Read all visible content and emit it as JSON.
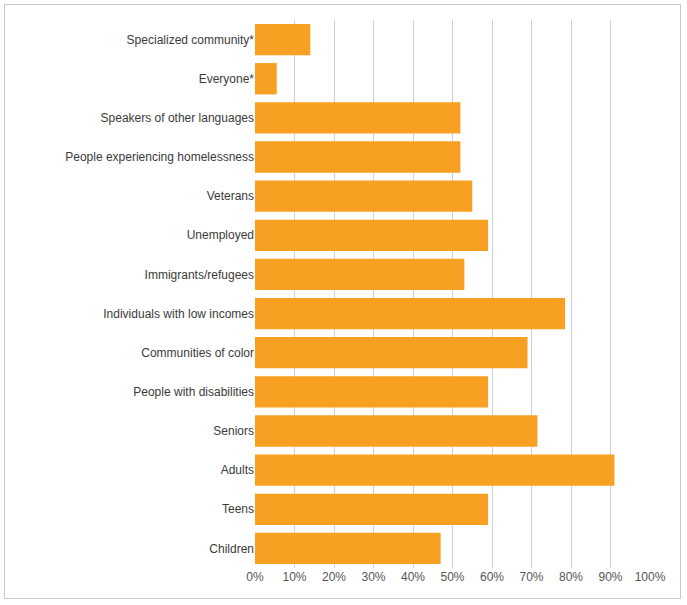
{
  "chart_data": {
    "type": "bar",
    "orientation": "horizontal",
    "categories": [
      "Specialized community*",
      "Everyone*",
      "Speakers of other languages",
      "People experiencing homelessness",
      "Veterans",
      "Unemployed",
      "Immigrants/refugees",
      "Individuals with low incomes",
      "Communities of color",
      "People with disabilities",
      "Seniors",
      "Adults",
      "Teens",
      "Children"
    ],
    "values": [
      14,
      5.5,
      52,
      52,
      55,
      59,
      53,
      78.5,
      69,
      59,
      71.5,
      91,
      59,
      47
    ],
    "color": "#f7a021",
    "xlim": [
      0,
      100
    ],
    "xticks": [
      {
        "value": 0,
        "label": "0%"
      },
      {
        "value": 10,
        "label": "10%"
      },
      {
        "value": 20,
        "label": "20%"
      },
      {
        "value": 30,
        "label": "30%"
      },
      {
        "value": 40,
        "label": "40%"
      },
      {
        "value": 50,
        "label": "50%"
      },
      {
        "value": 60,
        "label": "60%"
      },
      {
        "value": 70,
        "label": "70%"
      },
      {
        "value": 80,
        "label": "80%"
      },
      {
        "value": 90,
        "label": "90%"
      },
      {
        "value": 100,
        "label": "100%"
      }
    ],
    "grid": true
  }
}
